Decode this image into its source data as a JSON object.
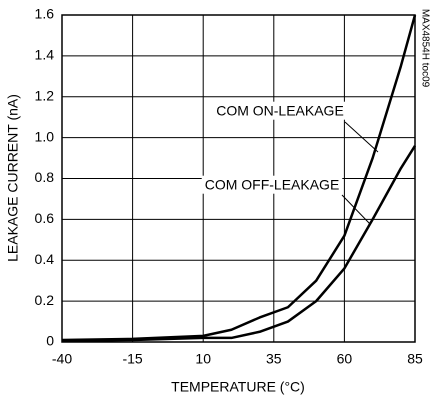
{
  "chart_data": {
    "type": "line",
    "xlabel": "TEMPERATURE (°C)",
    "ylabel": "LEAKAGE CURRENT (nA)",
    "side_note": "MAX4854H toc09",
    "x": [
      -40,
      -15,
      10,
      20,
      30,
      40,
      50,
      60,
      70,
      80,
      85
    ],
    "series": [
      {
        "name": "COM ON-LEAKAGE",
        "color": "#000000",
        "values": [
          0.01,
          0.015,
          0.03,
          0.06,
          0.12,
          0.17,
          0.3,
          0.52,
          0.9,
          1.35,
          1.6
        ]
      },
      {
        "name": "COM OFF-LEAKAGE",
        "color": "#000000",
        "values": [
          0.005,
          0.01,
          0.02,
          0.02,
          0.05,
          0.1,
          0.2,
          0.36,
          0.6,
          0.85,
          0.96
        ]
      }
    ],
    "xlim": [
      -40,
      85
    ],
    "xticks": [
      -40,
      -15,
      10,
      35,
      60,
      85
    ],
    "ylim": [
      0,
      1.6
    ],
    "yticks": [
      0,
      0.2,
      0.4,
      0.6,
      0.8,
      {
        "value": 1,
        "label": "1.0"
      },
      1.2,
      1.4,
      1.6
    ],
    "grid": true
  }
}
